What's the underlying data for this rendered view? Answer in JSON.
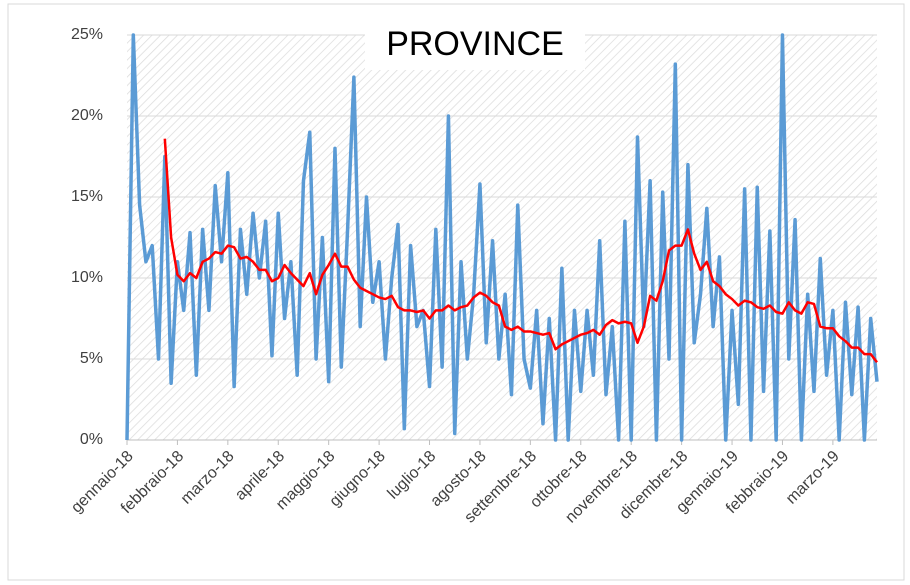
{
  "chart_data": {
    "type": "line",
    "title": "PROVINCE",
    "categories": [
      "gennaio-18",
      null,
      null,
      null,
      null,
      null,
      null,
      null,
      "febbraio-18",
      null,
      null,
      null,
      null,
      null,
      null,
      null,
      "marzo-18",
      null,
      null,
      null,
      null,
      null,
      null,
      null,
      "aprile-18",
      null,
      null,
      null,
      null,
      null,
      null,
      null,
      "maggio-18",
      null,
      null,
      null,
      null,
      null,
      null,
      null,
      "giugno-18",
      null,
      null,
      null,
      null,
      null,
      null,
      null,
      "luglio-18",
      null,
      null,
      null,
      null,
      null,
      null,
      null,
      "agosto-18",
      null,
      null,
      null,
      null,
      null,
      null,
      null,
      "settembre-18",
      null,
      null,
      null,
      null,
      null,
      null,
      null,
      "ottobre-18",
      null,
      null,
      null,
      null,
      null,
      null,
      null,
      "novembre-18",
      null,
      null,
      null,
      null,
      null,
      null,
      null,
      "dicembre-18",
      null,
      null,
      null,
      null,
      null,
      null,
      null,
      "gennaio-19",
      null,
      null,
      null,
      null,
      null,
      null,
      null,
      "febbraio-19",
      null,
      null,
      null,
      null,
      null,
      null,
      null,
      "marzo-19",
      null,
      null,
      null,
      null,
      null,
      null,
      null
    ],
    "series": [
      {
        "color": "#5b9bd5",
        "values": [
          0,
          25,
          14.5,
          11,
          12,
          5,
          17.5,
          3.5,
          11,
          8,
          12.8,
          4,
          13,
          8,
          15.7,
          11,
          16.5,
          3.3,
          13,
          9,
          14,
          10,
          13.5,
          5.2,
          14,
          7.5,
          11,
          4,
          16,
          19,
          5,
          12.5,
          3.6,
          18,
          4.5,
          13,
          22.4,
          7,
          15,
          8.5,
          11,
          5,
          10,
          13.3,
          0.7,
          12,
          7,
          8,
          3.3,
          13,
          4.5,
          20,
          0.4,
          11,
          5,
          9,
          15.8,
          6,
          12.3,
          5,
          9,
          2.8,
          14.5,
          5,
          3.2,
          8,
          1,
          7.5,
          0,
          10.6,
          0,
          8,
          3,
          8,
          4,
          12.3,
          2.8,
          7,
          0,
          13.5,
          0,
          18.7,
          7,
          16,
          0,
          15.3,
          5,
          23.2,
          0,
          17,
          6,
          9,
          14.3,
          7,
          11.3,
          0,
          8,
          2.2,
          15.5,
          0,
          15.6,
          3,
          12.9,
          0,
          25,
          5,
          13.6,
          0,
          9,
          3,
          11.2,
          4,
          8,
          0,
          8.5,
          2.8,
          8.2,
          0,
          7.5,
          3.6
        ]
      },
      {
        "color": "#ff0000",
        "values": [
          null,
          null,
          null,
          null,
          null,
          null,
          18.6,
          12.5,
          10.2,
          9.8,
          10.3,
          10,
          11,
          11.2,
          11.6,
          11.5,
          12,
          11.9,
          11.2,
          11.3,
          11,
          10.5,
          10.5,
          9.8,
          10,
          10.8,
          10.3,
          9.9,
          9.5,
          10.3,
          9,
          10.2,
          10.8,
          11.5,
          10.7,
          10.7,
          9.9,
          9.4,
          9.2,
          9,
          8.8,
          8.7,
          8.9,
          8.2,
          8,
          8,
          7.9,
          8,
          7.5,
          8,
          8,
          8.3,
          8,
          8.2,
          8.3,
          8.8,
          9.1,
          8.9,
          8.5,
          8.3,
          7,
          6.8,
          7,
          6.7,
          6.7,
          6.6,
          6.5,
          6.6,
          5.6,
          5.9,
          6.1,
          6.3,
          6.5,
          6.6,
          6.8,
          6.5,
          7.1,
          7.4,
          7.2,
          7.3,
          7.2,
          6,
          7,
          8.9,
          8.6,
          9.8,
          11.7,
          12,
          12,
          13,
          11.5,
          10.5,
          11,
          9.8,
          9.5,
          9,
          8.7,
          8.3,
          8.6,
          8.5,
          8.2,
          8.1,
          8.3,
          7.9,
          7.8,
          8.5,
          8,
          7.8,
          8.5,
          8.4,
          7,
          6.9,
          6.9,
          6.4,
          6.1,
          5.7,
          5.7,
          5.3,
          5.3,
          4.8
        ]
      }
    ],
    "ylim": [
      0,
      25
    ],
    "yticks": [
      {
        "value": 0,
        "label": "0%"
      },
      {
        "value": 5,
        "label": "5%"
      },
      {
        "value": 10,
        "label": "10%"
      },
      {
        "value": 15,
        "label": "15%"
      },
      {
        "value": 20,
        "label": "20%"
      },
      {
        "value": 25,
        "label": "25%"
      }
    ],
    "grid": true
  }
}
